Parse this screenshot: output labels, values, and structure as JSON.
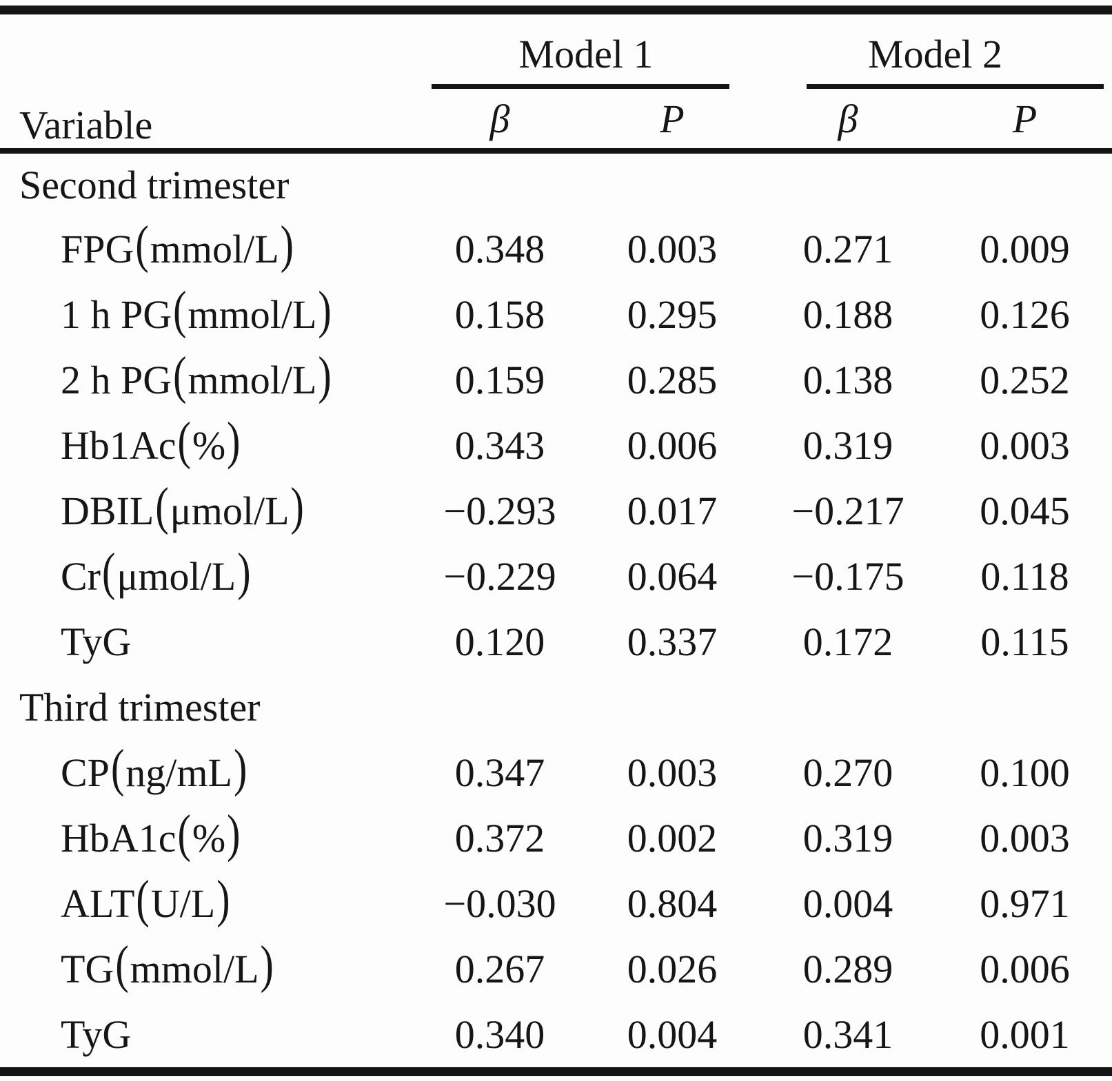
{
  "table": {
    "variable_header": "Variable",
    "groups": [
      {
        "label": "Model 1"
      },
      {
        "label": "Model 2"
      }
    ],
    "sub_headers": [
      "β",
      "P",
      "β",
      "P"
    ],
    "rows": [
      {
        "section": "Second trimester"
      },
      {
        "label": "FPG(mmol/L)",
        "values": [
          "0.348",
          "0.003",
          "0.271",
          "0.009"
        ]
      },
      {
        "label": "1 h PG(mmol/L)",
        "values": [
          "0.158",
          "0.295",
          "0.188",
          "0.126"
        ]
      },
      {
        "label": "2 h PG(mmol/L)",
        "values": [
          "0.159",
          "0.285",
          "0.138",
          "0.252"
        ]
      },
      {
        "label": "Hb1Ac(%)",
        "values": [
          "0.343",
          "0.006",
          "0.319",
          "0.003"
        ]
      },
      {
        "label": "DBIL(μmol/L)",
        "values": [
          "−0.293",
          "0.017",
          "−0.217",
          "0.045"
        ]
      },
      {
        "label": "Cr(μmol/L)",
        "values": [
          "−0.229",
          "0.064",
          "−0.175",
          "0.118"
        ]
      },
      {
        "label": "TyG",
        "values": [
          "0.120",
          "0.337",
          "0.172",
          "0.115"
        ]
      },
      {
        "section": "Third trimester"
      },
      {
        "label": "CP(ng/mL)",
        "values": [
          "0.347",
          "0.003",
          "0.270",
          "0.100"
        ]
      },
      {
        "label": "HbA1c(%)",
        "values": [
          "0.372",
          "0.002",
          "0.319",
          "0.003"
        ]
      },
      {
        "label": "ALT(U/L)",
        "values": [
          "−0.030",
          "0.804",
          "0.004",
          "0.971"
        ]
      },
      {
        "label": "TG(mmol/L)",
        "values": [
          "0.267",
          "0.026",
          "0.289",
          "0.006"
        ]
      },
      {
        "label": "TyG",
        "values": [
          "0.340",
          "0.004",
          "0.341",
          "0.001"
        ]
      }
    ]
  }
}
